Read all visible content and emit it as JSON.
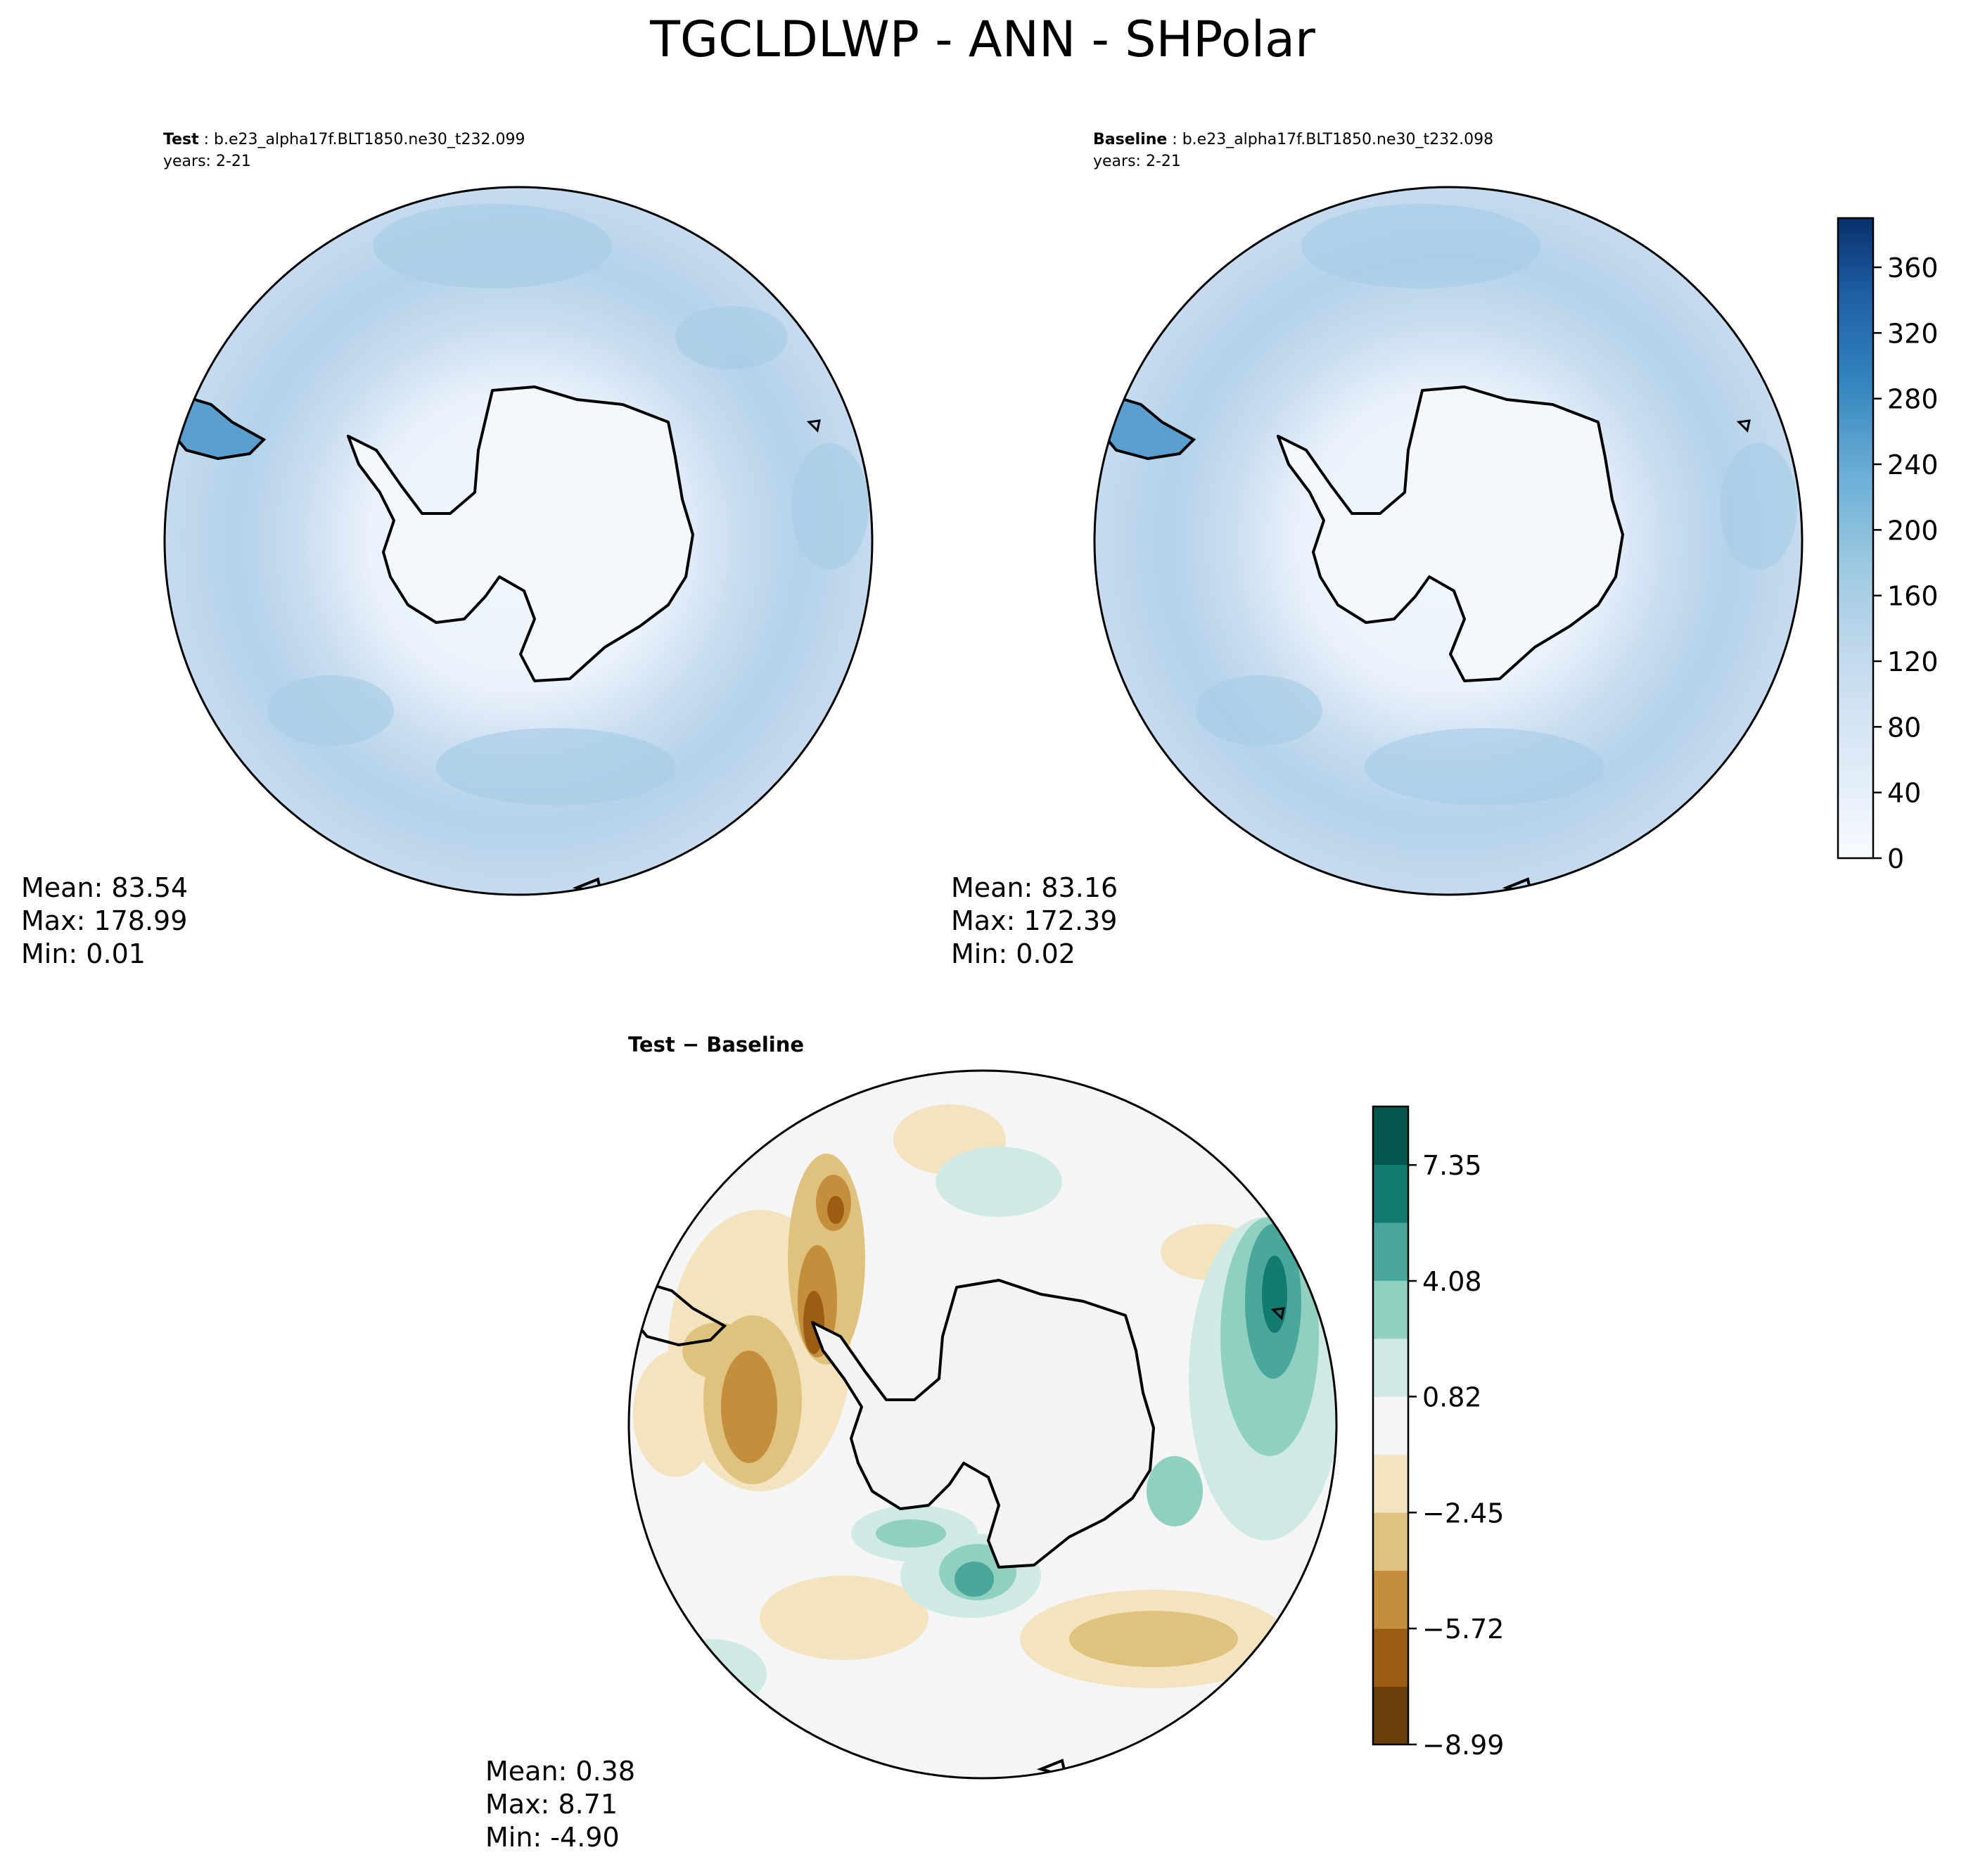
{
  "title": "TGCLDLWP - ANN - SHPolar",
  "panels": [
    {
      "id": "test",
      "header_bold": "Test",
      "header_rest": ": b.e23_alpha17f.BLT1850.ne30_t232.099",
      "years": "years: 2-21",
      "stats": {
        "mean": "Mean: 83.54",
        "max": "Max: 178.99",
        "min": "Min:  0.01"
      }
    },
    {
      "id": "baseline",
      "header_bold": "Baseline",
      "header_rest": ": b.e23_alpha17f.BLT1850.ne30_t232.098",
      "years": "years: 2-21",
      "stats": {
        "mean": "Mean: 83.16",
        "max": "Max: 172.39",
        "min": "Min:  0.02"
      }
    },
    {
      "id": "diff",
      "header_bold": "Test − Baseline",
      "stats": {
        "mean": "Mean:  0.38",
        "max": "Max:  8.71",
        "min": "Min: -4.90"
      }
    }
  ],
  "colorbar_main": {
    "ticks": [
      "0",
      "40",
      "80",
      "120",
      "160",
      "200",
      "240",
      "280",
      "320",
      "360"
    ],
    "range": [
      0,
      390
    ],
    "colormap": "Blues"
  },
  "colorbar_diff": {
    "ticks": [
      "−8.99",
      "−5.72",
      "−2.45",
      "0.82",
      "4.08",
      "7.35"
    ],
    "range": [
      -8.99,
      9.0
    ],
    "colors": [
      "#6b3f0c",
      "#9a5d12",
      "#c58e3d",
      "#dfc27d",
      "#f3e4bf",
      "#f5f5f5",
      "#cfeae4",
      "#8fd0c1",
      "#4aa79b",
      "#127a70",
      "#02564b"
    ],
    "colormap": "BrBG"
  }
}
